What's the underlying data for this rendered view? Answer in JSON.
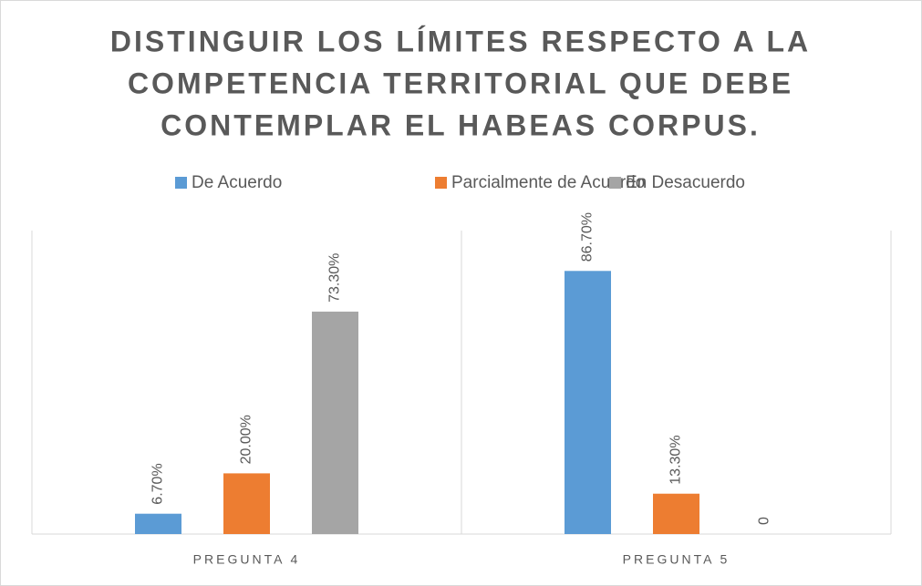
{
  "chart_data": {
    "type": "bar",
    "title": [
      "DISTINGUIR LOS LÍMITES RESPECTO A LA",
      "COMPETENCIA TERRITORIAL QUE DEBE",
      "CONTEMPLAR EL HABEAS CORPUS."
    ],
    "categories": [
      "PREGUNTA 4",
      "PREGUNTA 5"
    ],
    "series": [
      {
        "name": "De Acuerdo",
        "color": "#5b9bd5",
        "values": [
          6.7,
          86.7
        ],
        "value_labels": [
          "6.70%",
          "86.70%"
        ]
      },
      {
        "name": "Parcialmente de Acuerdo",
        "color": "#ed7d31",
        "values": [
          20,
          13.3
        ],
        "value_labels": [
          "20.00%",
          "13.30%"
        ]
      },
      {
        "name": "En Desacuerdo",
        "color": "#a5a5a5",
        "values": [
          73.3,
          0
        ],
        "value_labels": [
          "73.30%",
          "0"
        ]
      }
    ],
    "ylim": [
      0,
      100
    ],
    "grid": false,
    "legend": "top"
  }
}
